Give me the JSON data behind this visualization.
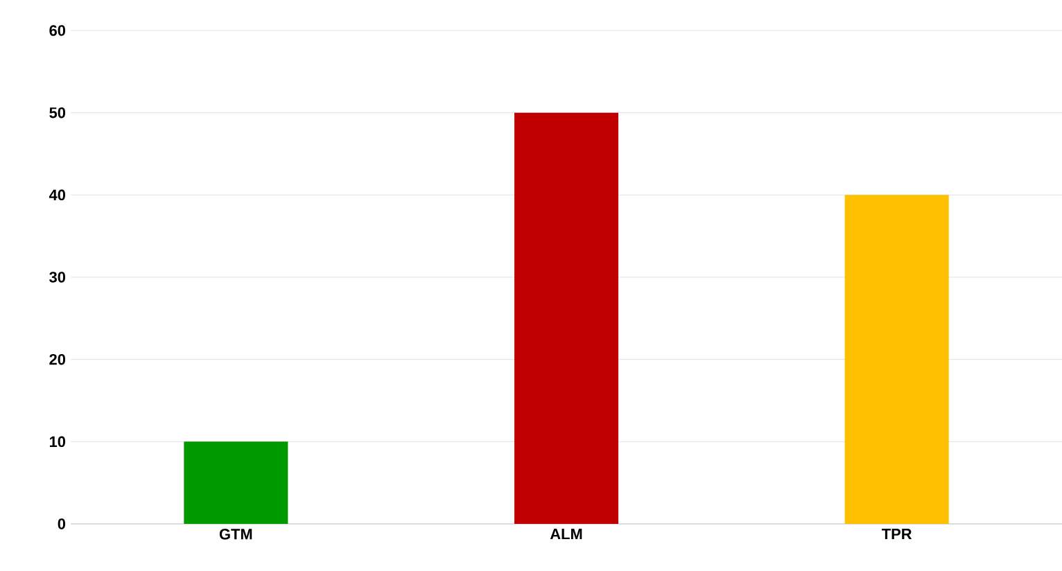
{
  "chart_data": {
    "type": "bar",
    "categories": [
      "GTM",
      "ALM",
      "TPR"
    ],
    "values": [
      10,
      50,
      40
    ],
    "colors": [
      "#009900",
      "#c00000",
      "#ffc000"
    ],
    "ylim": [
      0,
      60
    ],
    "yticks": [
      0,
      10,
      20,
      30,
      40,
      50,
      60
    ],
    "grid": "y"
  }
}
